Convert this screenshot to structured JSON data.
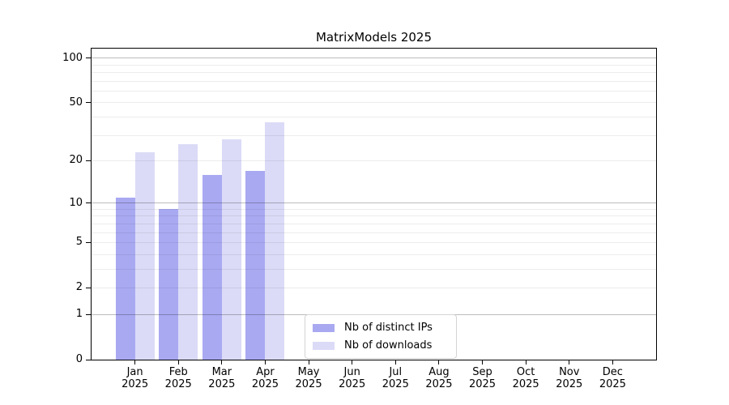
{
  "title": "MatrixModels 2025",
  "legend": {
    "position": "lower center",
    "items": [
      {
        "label": "Nb of distinct IPs",
        "color": "#a9a9f2"
      },
      {
        "label": "Nb of downloads",
        "color": "#dbdbf7"
      }
    ]
  },
  "chart_data": {
    "type": "bar",
    "title": "MatrixModels 2025",
    "xlabel": "",
    "ylabel": "",
    "y_scale": "log1p",
    "ylim": [
      0,
      116
    ],
    "y_ticks": [
      0,
      1,
      2,
      5,
      10,
      20,
      50,
      100
    ],
    "y_major_gridlines": [
      1,
      10,
      100
    ],
    "y_minor_gridlines": [
      2,
      3,
      4,
      5,
      6,
      7,
      8,
      9,
      20,
      30,
      40,
      50,
      60,
      70,
      80,
      90
    ],
    "grid": true,
    "legend_position": "lower center",
    "categories": [
      {
        "month": "Jan",
        "year": "2025"
      },
      {
        "month": "Feb",
        "year": "2025"
      },
      {
        "month": "Mar",
        "year": "2025"
      },
      {
        "month": "Apr",
        "year": "2025"
      },
      {
        "month": "May",
        "year": "2025"
      },
      {
        "month": "Jun",
        "year": "2025"
      },
      {
        "month": "Jul",
        "year": "2025"
      },
      {
        "month": "Aug",
        "year": "2025"
      },
      {
        "month": "Sep",
        "year": "2025"
      },
      {
        "month": "Oct",
        "year": "2025"
      },
      {
        "month": "Nov",
        "year": "2025"
      },
      {
        "month": "Dec",
        "year": "2025"
      }
    ],
    "series": [
      {
        "name": "Nb of distinct IPs",
        "key": "distinct-ips",
        "color": "#a9a9f2",
        "values": [
          11,
          9,
          16,
          17,
          null,
          null,
          null,
          null,
          null,
          null,
          null,
          null
        ]
      },
      {
        "name": "Nb of downloads",
        "key": "downloads",
        "color": "#dbdbf7",
        "values": [
          23,
          26,
          28,
          37,
          null,
          null,
          null,
          null,
          null,
          null,
          null,
          null
        ]
      }
    ],
    "colors": {
      "axis": "#000000",
      "minor_grid": "rgba(0,0,0,0.075)",
      "major_grid": "rgba(0,0,0,0.26)",
      "background": "#ffffff",
      "legend_border": "#d4d4d4"
    }
  }
}
